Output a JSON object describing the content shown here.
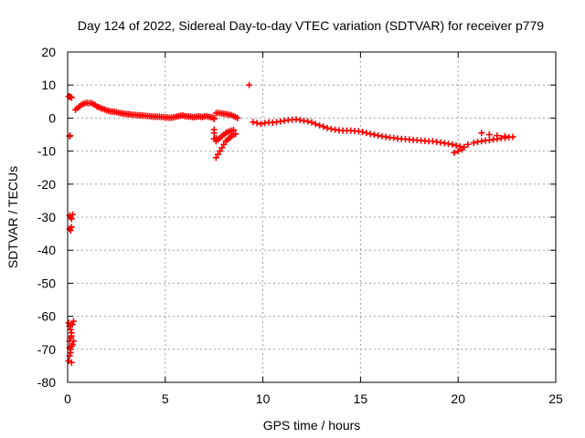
{
  "chart_data": {
    "type": "scatter",
    "title": "Day 124 of 2022, Sidereal Day-to-day VTEC variation (SDTVAR) for receiver p779",
    "xlabel": "GPS time / hours",
    "ylabel": "SDTVAR / TECUs",
    "xlim": [
      0,
      25
    ],
    "ylim": [
      -80,
      20
    ],
    "xticks": [
      "0",
      "5",
      "10",
      "15",
      "20",
      "25"
    ],
    "xtick_values": [
      0,
      5,
      10,
      15,
      20,
      25
    ],
    "yticks": [
      "20",
      "10",
      "0",
      "-10",
      "-20",
      "-30",
      "-40",
      "-50",
      "-60",
      "-70",
      "-80"
    ],
    "ytick_values": [
      20,
      10,
      0,
      -10,
      -20,
      -30,
      -40,
      -50,
      -60,
      -70,
      -80
    ],
    "grid": true,
    "marker": "plus",
    "series_color": "#ff0000",
    "series": [
      {
        "name": "SDTVAR",
        "x": [
          0.05,
          0.1,
          0.15,
          0.2,
          0.12,
          0.1,
          0.1,
          0.15,
          0.2,
          0.25,
          0.2,
          0.1,
          0.15,
          0.05,
          0.1,
          0.15,
          0.2,
          0.25,
          0.3,
          0.2,
          0.15,
          0.1,
          0.05,
          0.1,
          0.15,
          0.2,
          0.25,
          0.3,
          0.2,
          0.15,
          0.1,
          0.4,
          0.5,
          0.6,
          0.7,
          0.8,
          0.9,
          1.0,
          1.1,
          1.2,
          1.3,
          1.4,
          1.5,
          1.6,
          1.7,
          1.8,
          1.9,
          2.0,
          2.1,
          2.2,
          2.3,
          2.4,
          2.5,
          2.6,
          2.7,
          2.8,
          2.9,
          3.0,
          3.1,
          3.2,
          3.3,
          3.4,
          3.5,
          3.6,
          3.7,
          3.8,
          3.9,
          4.0,
          4.1,
          4.2,
          4.3,
          4.4,
          4.5,
          4.6,
          4.7,
          4.8,
          4.9,
          5.0,
          5.1,
          5.2,
          5.3,
          5.4,
          5.5,
          5.6,
          5.7,
          5.8,
          5.9,
          6.0,
          6.1,
          6.2,
          6.3,
          6.4,
          6.5,
          6.6,
          6.7,
          6.8,
          6.9,
          7.0,
          7.1,
          7.2,
          7.3,
          7.4,
          7.5,
          7.6,
          7.7,
          7.8,
          7.9,
          8.0,
          8.1,
          8.2,
          8.3,
          8.4,
          8.5,
          8.6,
          8.7,
          7.5,
          7.6,
          7.7,
          7.8,
          7.9,
          8.0,
          8.1,
          8.2,
          8.3,
          8.4,
          8.5,
          8.6,
          7.5,
          7.6,
          7.7,
          7.8,
          7.9,
          8.0,
          8.1,
          8.2,
          8.3,
          8.4,
          8.5,
          7.5,
          7.6,
          7.5,
          9.3,
          9.5,
          9.7,
          9.9,
          10.1,
          10.3,
          10.5,
          10.7,
          10.9,
          11.1,
          11.3,
          11.5,
          11.7,
          11.9,
          12.1,
          12.3,
          12.5,
          12.7,
          12.9,
          13.1,
          13.3,
          13.5,
          13.7,
          13.9,
          14.1,
          14.3,
          14.5,
          14.7,
          14.9,
          15.1,
          15.3,
          15.5,
          15.7,
          15.9,
          16.1,
          16.3,
          16.5,
          16.7,
          16.9,
          17.1,
          17.3,
          17.5,
          17.7,
          17.9,
          18.1,
          18.3,
          18.5,
          18.7,
          18.9,
          19.1,
          19.3,
          19.5,
          19.7,
          19.9,
          20.1,
          20.3,
          20.5,
          20.8,
          21.0,
          21.2,
          21.4,
          21.6,
          21.8,
          22.0,
          22.2,
          22.4,
          22.6,
          22.8,
          19.8,
          20.0,
          20.2,
          21.2,
          21.6,
          22.0,
          22.4
        ],
        "y": [
          6.5,
          6.6,
          6.3,
          6.2,
          -5.3,
          -5.5,
          -29.5,
          -30.0,
          -30.5,
          -29.2,
          -33.0,
          -33.5,
          -34.0,
          -62.0,
          -63.0,
          -64.0,
          -65.0,
          -62.5,
          -61.5,
          -66.0,
          -66.5,
          -67.5,
          -73.5,
          -72.0,
          -70.0,
          -69.0,
          -68.5,
          -67.5,
          -74.0,
          -71.0,
          -69.5,
          2.5,
          3.0,
          3.5,
          4.0,
          4.3,
          4.5,
          4.6,
          4.5,
          4.6,
          4.3,
          4.0,
          3.5,
          3.3,
          3.0,
          2.8,
          2.6,
          2.3,
          2.2,
          2.0,
          2.0,
          1.9,
          1.8,
          1.6,
          1.5,
          1.4,
          1.3,
          1.2,
          1.2,
          1.1,
          1.0,
          1.0,
          0.9,
          0.9,
          0.8,
          0.8,
          0.7,
          0.7,
          0.6,
          0.6,
          0.5,
          0.4,
          0.5,
          0.4,
          0.4,
          0.3,
          0.3,
          0.2,
          0.2,
          0.1,
          0.1,
          0.2,
          0.3,
          0.5,
          0.6,
          0.7,
          0.8,
          0.6,
          0.5,
          0.5,
          0.4,
          0.3,
          0.3,
          0.4,
          0.5,
          0.4,
          0.3,
          0.5,
          0.6,
          0.4,
          0.3,
          0.2,
          0.0,
          1.5,
          1.6,
          1.5,
          1.4,
          1.3,
          1.2,
          1.1,
          1.0,
          0.9,
          0.6,
          0.3,
          0.0,
          -0.3,
          -12.0,
          -11.0,
          -10.0,
          -9.0,
          -8.0,
          -7.0,
          -6.5,
          -6.0,
          -5.5,
          -5.0,
          -4.8,
          -4.5,
          -7.0,
          -6.5,
          -6.0,
          -5.5,
          -5.0,
          -4.5,
          -4.2,
          -4.0,
          -3.8,
          -3.6,
          -3.5,
          -6.0,
          -6.3,
          10.0,
          -1.2,
          -1.5,
          -1.8,
          -1.5,
          -1.3,
          -1.4,
          -1.2,
          -1.0,
          -0.8,
          -0.6,
          -0.5,
          -0.4,
          -0.6,
          -0.8,
          -1.0,
          -1.3,
          -1.8,
          -2.2,
          -2.6,
          -3.0,
          -3.3,
          -3.5,
          -3.7,
          -3.8,
          -3.8,
          -3.8,
          -3.9,
          -4.0,
          -4.2,
          -4.5,
          -4.8,
          -5.0,
          -5.3,
          -5.5,
          -5.7,
          -5.9,
          -6.0,
          -6.2,
          -6.3,
          -6.4,
          -6.5,
          -6.6,
          -6.7,
          -6.8,
          -6.9,
          -7.0,
          -7.0,
          -7.2,
          -7.4,
          -7.6,
          -7.8,
          -8.0,
          -8.3,
          -8.6,
          -8.8,
          -8.0,
          -7.5,
          -7.2,
          -7.0,
          -6.8,
          -6.7,
          -6.5,
          -6.3,
          -6.1,
          -6.0,
          -5.8,
          -5.7,
          -10.5,
          -10.0,
          -9.5,
          -4.5,
          -5.0,
          -5.3,
          -5.5
        ]
      }
    ]
  }
}
